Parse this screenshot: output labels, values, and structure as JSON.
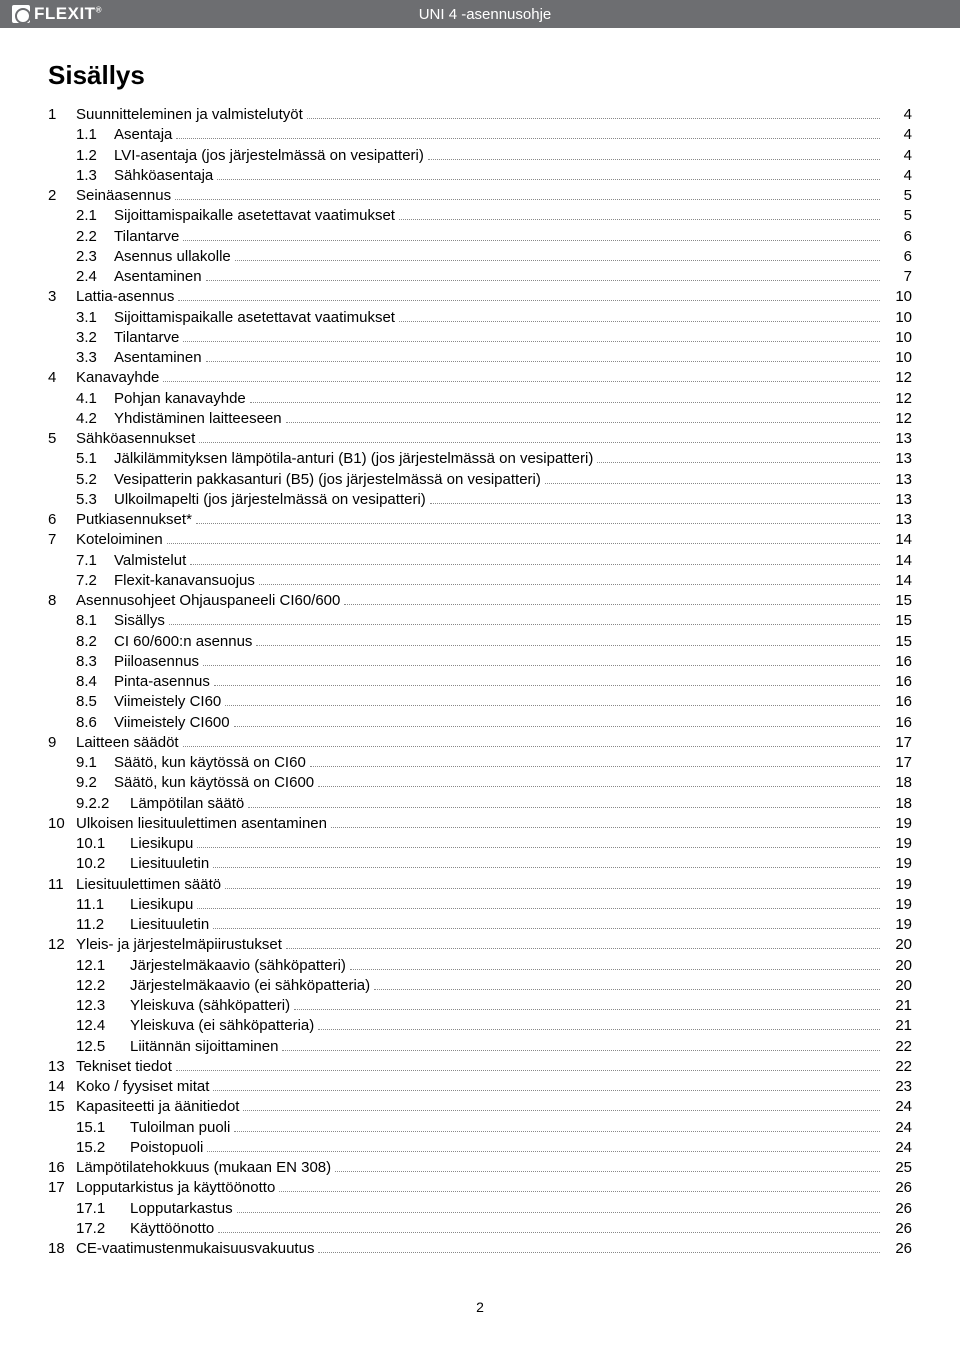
{
  "header": {
    "brand": "FLEXIT",
    "title": "UNI 4 -asennusohje"
  },
  "title": "Sisällys",
  "footer_page": "2",
  "colors": {
    "header_bg": "#6d6e71",
    "header_fg": "#ffffff",
    "text": "#000000",
    "leader": "#888888"
  },
  "toc": [
    {
      "num": "1",
      "label": "Suunnitteleminen ja valmistelutyöt",
      "page": "4",
      "level": 0
    },
    {
      "num": "1.1",
      "label": "Asentaja",
      "page": "4",
      "level": 1
    },
    {
      "num": "1.2",
      "label": "LVI-asentaja (jos järjestelmässä on vesipatteri)",
      "page": "4",
      "level": 1
    },
    {
      "num": "1.3",
      "label": "Sähköasentaja",
      "page": "4",
      "level": 1
    },
    {
      "num": "2",
      "label": "Seinäasennus",
      "page": "5",
      "level": 0
    },
    {
      "num": "2.1",
      "label": "Sijoittamispaikalle asetettavat vaatimukset",
      "page": "5",
      "level": 1
    },
    {
      "num": "2.2",
      "label": "Tilantarve",
      "page": "6",
      "level": 1
    },
    {
      "num": "2.3",
      "label": "Asennus ullakolle",
      "page": "6",
      "level": 1
    },
    {
      "num": "2.4",
      "label": "Asentaminen",
      "page": "7",
      "level": 1
    },
    {
      "num": "3",
      "label": "Lattia-asennus",
      "page": "10",
      "level": 0
    },
    {
      "num": "3.1",
      "label": "Sijoittamispaikalle asetettavat vaatimukset",
      "page": "10",
      "level": 1
    },
    {
      "num": "3.2",
      "label": "Tilantarve",
      "page": "10",
      "level": 1
    },
    {
      "num": "3.3",
      "label": "Asentaminen",
      "page": "10",
      "level": 1
    },
    {
      "num": "4",
      "label": "Kanavayhde",
      "page": "12",
      "level": 0
    },
    {
      "num": "4.1",
      "label": "Pohjan kanavayhde",
      "page": "12",
      "level": 1
    },
    {
      "num": "4.2",
      "label": "Yhdistäminen laitteeseen",
      "page": "12",
      "level": 1
    },
    {
      "num": "5",
      "label": "Sähköasennukset",
      "page": "13",
      "level": 0
    },
    {
      "num": "5.1",
      "label": "Jälkilämmityksen lämpötila-anturi (B1) (jos järjestelmässä on vesipatteri)",
      "page": "13",
      "level": 1
    },
    {
      "num": "5.2",
      "label": "Vesipatterin pakkasanturi (B5) (jos järjestelmässä on vesipatteri)",
      "page": "13",
      "level": 1
    },
    {
      "num": "5.3",
      "label": "Ulkoilmapelti (jos järjestelmässä on vesipatteri)",
      "page": "13",
      "level": 1
    },
    {
      "num": "6",
      "label": "Putkiasennukset*",
      "page": "13",
      "level": 0
    },
    {
      "num": "7",
      "label": "Koteloiminen",
      "page": "14",
      "level": 0
    },
    {
      "num": "7.1",
      "label": "Valmistelut",
      "page": "14",
      "level": 1
    },
    {
      "num": "7.2",
      "label": "Flexit-kanavansuojus",
      "page": "14",
      "level": 1
    },
    {
      "num": "8",
      "label": "Asennusohjeet Ohjauspaneeli CI60/600",
      "page": "15",
      "level": 0
    },
    {
      "num": "8.1",
      "label": "Sisällys",
      "page": "15",
      "level": 1
    },
    {
      "num": "8.2",
      "label": "CI 60/600:n asennus",
      "page": "15",
      "level": 1
    },
    {
      "num": "8.3",
      "label": "Piiloasennus",
      "page": "16",
      "level": 1
    },
    {
      "num": "8.4",
      "label": "Pinta-asennus",
      "page": "16",
      "level": 1
    },
    {
      "num": "8.5",
      "label": "Viimeistely CI60",
      "page": "16",
      "level": 1
    },
    {
      "num": "8.6",
      "label": "Viimeistely CI600",
      "page": "16",
      "level": 1
    },
    {
      "num": "9",
      "label": "Laitteen säädöt",
      "page": "17",
      "level": 0
    },
    {
      "num": "9.1",
      "label": "Säätö, kun käytössä on CI60",
      "page": "17",
      "level": 1
    },
    {
      "num": "9.2",
      "label": "Säätö, kun käytössä on CI600",
      "page": "18",
      "level": 1
    },
    {
      "num": "9.2.2",
      "label": "Lämpötilan säätö",
      "page": "18",
      "level": 1,
      "wide": true
    },
    {
      "num": "10",
      "label": "Ulkoisen liesituulettimen asentaminen",
      "page": "19",
      "level": 0
    },
    {
      "num": "10.1",
      "label": "Liesikupu",
      "page": "19",
      "level": 1,
      "wide": true
    },
    {
      "num": "10.2",
      "label": "Liesituuletin",
      "page": "19",
      "level": 1,
      "wide": true
    },
    {
      "num": "11",
      "label": "Liesituulettimen säätö",
      "page": "19",
      "level": 0
    },
    {
      "num": "11.1",
      "label": "Liesikupu",
      "page": "19",
      "level": 1,
      "wide": true
    },
    {
      "num": "11.2",
      "label": "Liesituuletin",
      "page": "19",
      "level": 1,
      "wide": true
    },
    {
      "num": "12",
      "label": "Yleis- ja järjestelmäpiirustukset",
      "page": "20",
      "level": 0
    },
    {
      "num": "12.1",
      "label": "Järjestelmäkaavio (sähköpatteri)",
      "page": "20",
      "level": 1,
      "wide": true
    },
    {
      "num": "12.2",
      "label": "Järjestelmäkaavio (ei sähköpatteria)",
      "page": "20",
      "level": 1,
      "wide": true
    },
    {
      "num": "12.3",
      "label": "Yleiskuva (sähköpatteri)",
      "page": "21",
      "level": 1,
      "wide": true
    },
    {
      "num": "12.4",
      "label": "Yleiskuva (ei sähköpatteria)",
      "page": "21",
      "level": 1,
      "wide": true
    },
    {
      "num": "12.5",
      "label": "Liitännän sijoittaminen",
      "page": "22",
      "level": 1,
      "wide": true
    },
    {
      "num": "13",
      "label": "Tekniset tiedot",
      "page": "22",
      "level": 0
    },
    {
      "num": "14",
      "label": "Koko / fyysiset mitat",
      "page": "23",
      "level": 0
    },
    {
      "num": "15",
      "label": "Kapasiteetti ja äänitiedot",
      "page": "24",
      "level": 0
    },
    {
      "num": "15.1",
      "label": "Tuloilman puoli",
      "page": "24",
      "level": 1,
      "wide": true
    },
    {
      "num": "15.2",
      "label": "Poistopuoli",
      "page": "24",
      "level": 1,
      "wide": true
    },
    {
      "num": "16",
      "label": " Lämpötilatehokkuus (mukaan EN 308)",
      "page": "25",
      "level": 0
    },
    {
      "num": "17",
      "label": "Lopputarkistus ja käyttöönotto",
      "page": "26",
      "level": 0
    },
    {
      "num": "17.1",
      "label": "Lopputarkastus",
      "page": "26",
      "level": 1,
      "wide": true
    },
    {
      "num": "17.2",
      "label": "Käyttöönotto",
      "page": "26",
      "level": 1,
      "wide": true
    },
    {
      "num": "18",
      "label": "CE-vaatimustenmukaisuusvakuutus",
      "page": "26",
      "level": 0
    }
  ]
}
